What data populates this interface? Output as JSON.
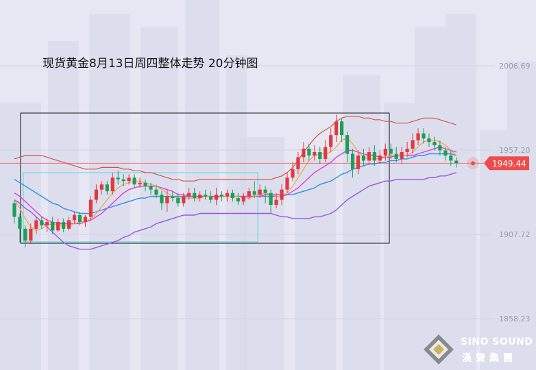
{
  "title": "现货黄金8月13日周四整体走势 20分钟图",
  "logo": {
    "name": "SINO SOUND",
    "name_cn": "漢聲集團"
  },
  "colors": {
    "background": "#e6e7f3",
    "up_candle": "#e0393e",
    "down_candle": "#1e9d57",
    "ma_orange": "#f2a23c",
    "ma_magenta": "#e53ad9",
    "ma_blue": "#2b8fe8",
    "bb_upper": "#d94f3f",
    "bb_lower": "#9a56e6",
    "current_price": "#f04b4b",
    "box_outer": "#111111",
    "box_inner": "#57d6e0"
  },
  "chart_data": {
    "type": "candlestick",
    "title": "现货黄金8月13日周四整体走势 20分钟图",
    "y_axis": {
      "min": 1845,
      "max": 2020,
      "ticks": [
        2006.69,
        1957.2,
        1907.72,
        1858.23
      ],
      "tick_labels": [
        "2006.69",
        "1957.20",
        "1907.72",
        "1858.23"
      ]
    },
    "current_price": 1949.44,
    "current_price_label": "1949.44",
    "candles": [
      [
        1926,
        1918,
        1928,
        1914
      ],
      [
        1918,
        1911,
        1920,
        1903
      ],
      [
        1911,
        1904,
        1913,
        1900
      ],
      [
        1904,
        1911,
        1914,
        1902
      ],
      [
        1911,
        1916,
        1918,
        1908
      ],
      [
        1916,
        1913,
        1918,
        1911
      ],
      [
        1913,
        1915,
        1917,
        1909
      ],
      [
        1915,
        1910,
        1918,
        1908
      ],
      [
        1910,
        1915,
        1917,
        1909
      ],
      [
        1915,
        1911,
        1917,
        1909
      ],
      [
        1911,
        1916,
        1918,
        1910
      ],
      [
        1916,
        1919,
        1921,
        1914
      ],
      [
        1919,
        1915,
        1921,
        1913
      ],
      [
        1915,
        1918,
        1919,
        1912
      ],
      [
        1918,
        1928,
        1930,
        1916
      ],
      [
        1928,
        1934,
        1937,
        1926
      ],
      [
        1934,
        1937,
        1939,
        1931
      ],
      [
        1937,
        1933,
        1939,
        1931
      ],
      [
        1933,
        1941,
        1944,
        1931
      ],
      [
        1941,
        1940,
        1945,
        1937
      ],
      [
        1940,
        1939,
        1943,
        1936
      ],
      [
        1939,
        1941,
        1943,
        1937
      ],
      [
        1941,
        1937,
        1943,
        1935
      ],
      [
        1937,
        1938,
        1941,
        1935
      ],
      [
        1938,
        1936,
        1940,
        1933
      ],
      [
        1936,
        1934,
        1938,
        1931
      ],
      [
        1934,
        1931,
        1937,
        1929
      ],
      [
        1931,
        1926,
        1933,
        1922
      ],
      [
        1926,
        1930,
        1934,
        1921
      ],
      [
        1930,
        1929,
        1933,
        1927
      ],
      [
        1929,
        1926,
        1932,
        1924
      ],
      [
        1926,
        1930,
        1932,
        1924
      ],
      [
        1930,
        1932,
        1935,
        1928
      ],
      [
        1932,
        1929,
        1935,
        1927
      ],
      [
        1929,
        1931,
        1933,
        1927
      ],
      [
        1931,
        1930,
        1934,
        1928
      ],
      [
        1930,
        1928,
        1933,
        1926
      ],
      [
        1928,
        1931,
        1935,
        1925
      ],
      [
        1931,
        1930,
        1933,
        1927
      ],
      [
        1930,
        1932,
        1934,
        1927
      ],
      [
        1932,
        1929,
        1934,
        1927
      ],
      [
        1929,
        1927,
        1932,
        1925
      ],
      [
        1927,
        1930,
        1932,
        1925
      ],
      [
        1930,
        1933,
        1935,
        1928
      ],
      [
        1933,
        1931,
        1939,
        1929
      ],
      [
        1931,
        1934,
        1937,
        1929
      ],
      [
        1934,
        1932,
        1936,
        1926
      ],
      [
        1932,
        1925,
        1934,
        1920
      ],
      [
        1925,
        1928,
        1932,
        1923
      ],
      [
        1928,
        1934,
        1937,
        1925
      ],
      [
        1934,
        1941,
        1944,
        1932
      ],
      [
        1941,
        1946,
        1950,
        1939
      ],
      [
        1946,
        1953,
        1956,
        1943
      ],
      [
        1953,
        1958,
        1962,
        1950
      ],
      [
        1958,
        1954,
        1961,
        1951
      ],
      [
        1954,
        1956,
        1960,
        1951
      ],
      [
        1956,
        1952,
        1959,
        1949
      ],
      [
        1952,
        1959,
        1963,
        1950
      ],
      [
        1959,
        1966,
        1970,
        1956
      ],
      [
        1966,
        1974,
        1978,
        1962
      ],
      [
        1974,
        1966,
        1976,
        1962
      ],
      [
        1966,
        1955,
        1968,
        1950
      ],
      [
        1955,
        1946,
        1958,
        1941
      ],
      [
        1946,
        1954,
        1957,
        1943
      ],
      [
        1954,
        1951,
        1958,
        1948
      ],
      [
        1951,
        1956,
        1959,
        1949
      ],
      [
        1956,
        1951,
        1960,
        1948
      ],
      [
        1951,
        1954,
        1957,
        1949
      ],
      [
        1954,
        1958,
        1961,
        1951
      ],
      [
        1958,
        1955,
        1961,
        1952
      ],
      [
        1955,
        1952,
        1959,
        1950
      ],
      [
        1952,
        1956,
        1959,
        1949
      ],
      [
        1956,
        1958,
        1962,
        1953
      ],
      [
        1958,
        1963,
        1967,
        1955
      ],
      [
        1963,
        1967,
        1970,
        1960
      ],
      [
        1967,
        1964,
        1970,
        1961
      ],
      [
        1964,
        1962,
        1967,
        1959
      ],
      [
        1962,
        1960,
        1965,
        1957
      ],
      [
        1960,
        1957,
        1963,
        1954
      ],
      [
        1957,
        1954,
        1959,
        1951
      ],
      [
        1954,
        1951,
        1957,
        1948
      ],
      [
        1951,
        1949.44,
        1953,
        1947
      ]
    ],
    "ma_orange": [
      1928,
      1923,
      1917,
      1912,
      1910,
      1911,
      1913,
      1914,
      1913,
      1913,
      1913,
      1914,
      1915,
      1915,
      1917,
      1920,
      1924,
      1928,
      1932,
      1935,
      1937,
      1938,
      1939,
      1939,
      1938,
      1937,
      1936,
      1934,
      1932,
      1930,
      1929,
      1929,
      1929,
      1929,
      1929,
      1930,
      1930,
      1929,
      1930,
      1930,
      1930,
      1930,
      1929,
      1929,
      1930,
      1931,
      1932,
      1931,
      1930,
      1930,
      1932,
      1936,
      1941,
      1946,
      1951,
      1954,
      1955,
      1955,
      1956,
      1959,
      1963,
      1964,
      1961,
      1956,
      1953,
      1952,
      1952,
      1952,
      1953,
      1954,
      1954,
      1954,
      1954,
      1956,
      1959,
      1962,
      1963,
      1963,
      1962,
      1960,
      1957,
      1954
    ],
    "ma_magenta": [
      1932,
      1930,
      1927,
      1924,
      1921,
      1918,
      1916,
      1915,
      1914,
      1914,
      1914,
      1914,
      1914,
      1915,
      1916,
      1918,
      1920,
      1923,
      1926,
      1929,
      1932,
      1934,
      1935,
      1936,
      1936,
      1936,
      1936,
      1935,
      1934,
      1933,
      1931,
      1931,
      1930,
      1930,
      1930,
      1930,
      1930,
      1930,
      1930,
      1930,
      1930,
      1930,
      1930,
      1930,
      1930,
      1930,
      1931,
      1931,
      1931,
      1931,
      1931,
      1933,
      1935,
      1938,
      1941,
      1944,
      1946,
      1948,
      1950,
      1953,
      1955,
      1957,
      1957,
      1956,
      1955,
      1954,
      1954,
      1953,
      1953,
      1953,
      1954,
      1954,
      1954,
      1954,
      1955,
      1956,
      1957,
      1958,
      1959,
      1958,
      1957,
      1956
    ],
    "ma_blue": [
      1940,
      1938,
      1936,
      1934,
      1932,
      1930,
      1928,
      1926,
      1925,
      1923,
      1922,
      1921,
      1920,
      1920,
      1920,
      1921,
      1922,
      1923,
      1924,
      1925,
      1926,
      1927,
      1928,
      1929,
      1929,
      1930,
      1930,
      1930,
      1930,
      1930,
      1930,
      1930,
      1930,
      1930,
      1930,
      1930,
      1930,
      1930,
      1930,
      1930,
      1930,
      1930,
      1930,
      1930,
      1930,
      1930,
      1930,
      1930,
      1930,
      1930,
      1931,
      1931,
      1932,
      1933,
      1934,
      1935,
      1937,
      1938,
      1939,
      1941,
      1943,
      1944,
      1946,
      1947,
      1948,
      1949,
      1949,
      1950,
      1950,
      1951,
      1951,
      1952,
      1952,
      1953,
      1954,
      1954,
      1955,
      1955,
      1955,
      1955,
      1955,
      1954
    ],
    "bb_upper": [
      1952,
      1953,
      1954,
      1954,
      1954,
      1954,
      1953,
      1952,
      1951,
      1950,
      1949,
      1948,
      1947,
      1946,
      1946,
      1946,
      1947,
      1947,
      1947,
      1947,
      1946,
      1946,
      1945,
      1945,
      1944,
      1944,
      1943,
      1942,
      1941,
      1940,
      1940,
      1939,
      1939,
      1939,
      1940,
      1940,
      1940,
      1940,
      1940,
      1940,
      1940,
      1940,
      1940,
      1940,
      1940,
      1940,
      1940,
      1940,
      1941,
      1942,
      1944,
      1947,
      1951,
      1956,
      1960,
      1964,
      1967,
      1969,
      1971,
      1974,
      1976,
      1977,
      1977,
      1977,
      1976,
      1976,
      1975,
      1975,
      1974,
      1974,
      1973,
      1973,
      1973,
      1974,
      1975,
      1976,
      1976,
      1976,
      1975,
      1974,
      1973,
      1972
    ],
    "bb_lower": [
      1928,
      1926,
      1923,
      1921,
      1918,
      1915,
      1912,
      1909,
      1906,
      1903,
      1901,
      1900,
      1899,
      1899,
      1899,
      1900,
      1901,
      1902,
      1903,
      1904,
      1906,
      1907,
      1909,
      1910,
      1911,
      1912,
      1914,
      1915,
      1916,
      1917,
      1918,
      1919,
      1919,
      1919,
      1920,
      1920,
      1920,
      1920,
      1920,
      1920,
      1920,
      1920,
      1920,
      1920,
      1920,
      1920,
      1920,
      1920,
      1919,
      1918,
      1918,
      1917,
      1917,
      1917,
      1917,
      1918,
      1918,
      1919,
      1920,
      1922,
      1925,
      1928,
      1930,
      1932,
      1934,
      1936,
      1937,
      1938,
      1939,
      1939,
      1940,
      1940,
      1940,
      1940,
      1940,
      1940,
      1941,
      1941,
      1942,
      1942,
      1943,
      1944
    ]
  }
}
